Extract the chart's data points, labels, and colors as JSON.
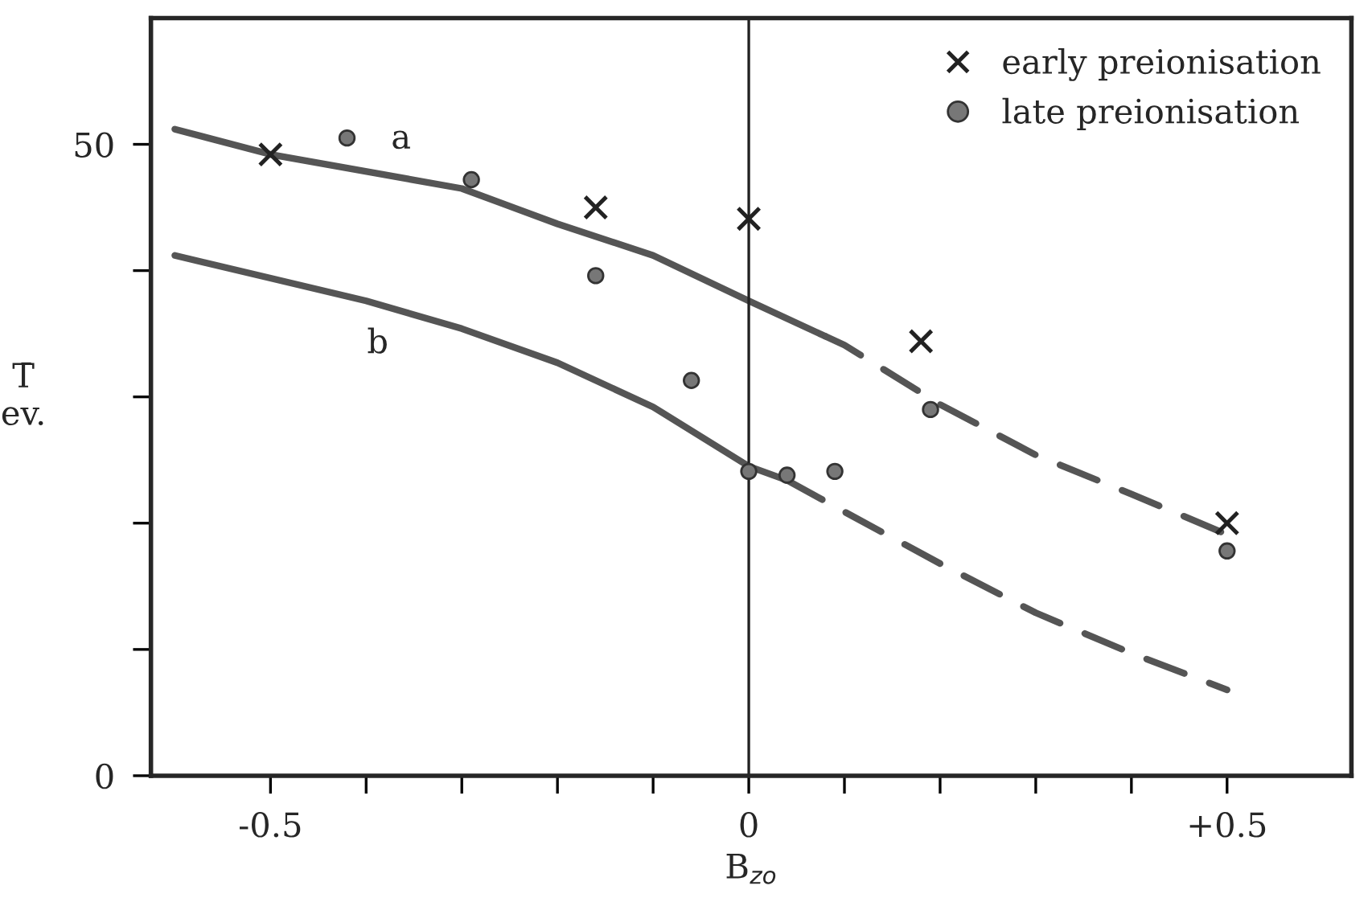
{
  "chart_data": {
    "type": "line",
    "xlabel": "B$_{zo}$",
    "ylabel": "T̄\nev.",
    "xlim": [
      -0.625,
      0.63
    ],
    "ylim": [
      0,
      60
    ],
    "xticks": [
      {
        "value": -0.5,
        "label": "-0.5"
      },
      {
        "value": -0.4,
        "label": null
      },
      {
        "value": -0.3,
        "label": null
      },
      {
        "value": -0.2,
        "label": null
      },
      {
        "value": -0.1,
        "label": null
      },
      0,
      {
        "value": 0.1,
        "label": null
      },
      {
        "value": 0.2,
        "label": null
      },
      {
        "value": 0.3,
        "label": null
      },
      {
        "value": 0.4,
        "label": null
      },
      {
        "value": 0.5,
        "label": "+0.5"
      }
    ],
    "yticks": [
      0,
      {
        "value": 10,
        "label": null
      },
      {
        "value": 20,
        "label": null
      },
      {
        "value": 30,
        "label": null
      },
      {
        "value": 40,
        "label": null
      },
      50
    ],
    "grid": false,
    "legend": "top right",
    "series": [
      {
        "line_style": "solid",
        "color": "#555555",
        "x": [
          -0.6,
          -0.5,
          -0.3,
          -0.2,
          -0.1,
          0,
          0.08
        ],
        "values": [
          51.2,
          49.2,
          46.5,
          43.7,
          41.2,
          37.6,
          34.8
        ]
      },
      {
        "line_style": "dashed",
        "color": "#555555",
        "x": [
          0.08,
          0.1,
          0.2,
          0.3,
          0.4,
          0.5
        ],
        "values": [
          34.8,
          34.1,
          29.4,
          25.4,
          22.3,
          19.1
        ]
      },
      {
        "line_style": "solid",
        "color": "#555555",
        "x": [
          -0.6,
          -0.5,
          -0.4,
          -0.3,
          -0.2,
          -0.1,
          0,
          0.04
        ],
        "values": [
          41.2,
          39.4,
          37.6,
          35.4,
          32.7,
          29.2,
          24.5,
          23.4
        ]
      },
      {
        "line_style": "dashed",
        "color": "#555555",
        "x": [
          0.04,
          0.1,
          0.2,
          0.3,
          0.4,
          0.5
        ],
        "values": [
          23.4,
          20.9,
          16.8,
          12.9,
          9.7,
          6.8
        ]
      },
      {
        "type": "scatter",
        "name": "early preionisation",
        "marker": "cross",
        "color": "#222222",
        "x": [
          -0.5,
          -0.16,
          0,
          0.18,
          0.5
        ],
        "values": [
          49.2,
          45.0,
          44.1,
          34.4,
          20.0
        ]
      },
      {
        "type": "scatter",
        "name": "late preionisation",
        "marker": "circle",
        "color": "#777777",
        "x": [
          -0.42,
          -0.29,
          -0.16,
          -0.06,
          0,
          0.04,
          0.09,
          0.19,
          0.5
        ],
        "values": [
          50.5,
          47.2,
          39.6,
          31.3,
          24.1,
          23.8,
          24.1,
          29.0,
          17.8
        ]
      }
    ],
    "ref_lines": [
      {
        "axis": "x",
        "value": 0,
        "color": "#222222"
      }
    ],
    "annotations": [
      "a",
      "b"
    ]
  }
}
